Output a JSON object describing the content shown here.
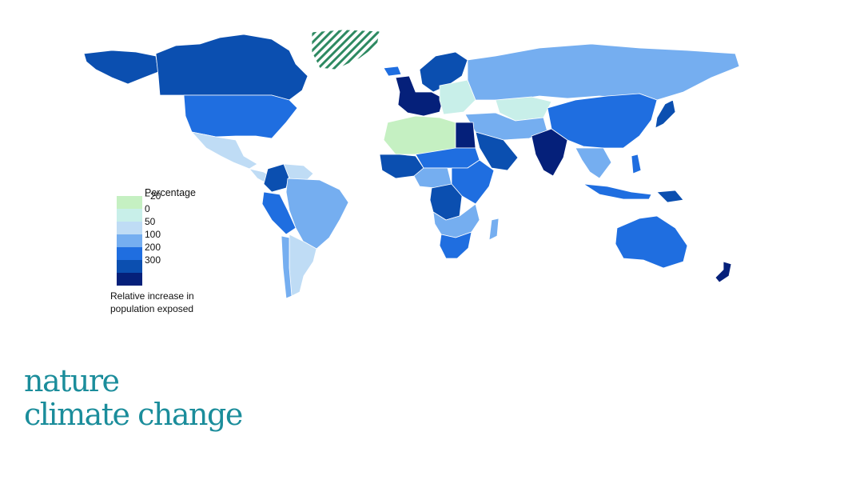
{
  "legend": {
    "title": "Percentage",
    "classes": [
      {
        "label": "−20",
        "color": "#c5f0c2"
      },
      {
        "label": "0",
        "color": "#c8efe9"
      },
      {
        "label": "50",
        "color": "#bfdcf5"
      },
      {
        "label": "100",
        "color": "#75aef0"
      },
      {
        "label": "200",
        "color": "#1f6ee0"
      },
      {
        "label": "300",
        "color": "#0b4fb0"
      },
      {
        "label": "",
        "color": "#05207a"
      }
    ],
    "caption": "Relative increase in population exposed"
  },
  "regions": [
    {
      "name": "Alaska",
      "class": 5
    },
    {
      "name": "Canada",
      "class": 5
    },
    {
      "name": "USA",
      "class": 4
    },
    {
      "name": "Mexico",
      "class": 2
    },
    {
      "name": "Central America",
      "class": 2
    },
    {
      "name": "Colombia",
      "class": 5
    },
    {
      "name": "Venezuela",
      "class": 2
    },
    {
      "name": "Peru",
      "class": 4
    },
    {
      "name": "Brazil",
      "class": 3
    },
    {
      "name": "Argentina",
      "class": 2
    },
    {
      "name": "Chile",
      "class": 3
    },
    {
      "name": "Greenland",
      "class": "hatched"
    },
    {
      "name": "Iceland",
      "class": 4
    },
    {
      "name": "Scandinavia",
      "class": 5
    },
    {
      "name": "Western Europe",
      "class": 6
    },
    {
      "name": "Eastern Europe",
      "class": 1
    },
    {
      "name": "Russia",
      "class": 3
    },
    {
      "name": "Kazakhstan",
      "class": 1
    },
    {
      "name": "Middle East",
      "class": 3
    },
    {
      "name": "Arabia",
      "class": 5
    },
    {
      "name": "North Africa",
      "class": 0
    },
    {
      "name": "Egypt",
      "class": 6
    },
    {
      "name": "West Africa",
      "class": 5
    },
    {
      "name": "Sahel",
      "class": 4
    },
    {
      "name": "Central Africa",
      "class": 3
    },
    {
      "name": "DR Congo",
      "class": 5
    },
    {
      "name": "East Africa",
      "class": 4
    },
    {
      "name": "Southern Africa",
      "class": 3
    },
    {
      "name": "South Africa",
      "class": 4
    },
    {
      "name": "Madagascar",
      "class": 3
    },
    {
      "name": "India",
      "class": 6
    },
    {
      "name": "China",
      "class": 4
    },
    {
      "name": "Southeast Asia",
      "class": 3
    },
    {
      "name": "Japan",
      "class": 5
    },
    {
      "name": "Indonesia",
      "class": 4
    },
    {
      "name": "Philippines",
      "class": 4
    },
    {
      "name": "Papua New Guinea",
      "class": 5
    },
    {
      "name": "Australia",
      "class": 4
    },
    {
      "name": "New Zealand",
      "class": 6
    }
  ],
  "brand": {
    "line1": "nature",
    "line2": "climate change"
  }
}
